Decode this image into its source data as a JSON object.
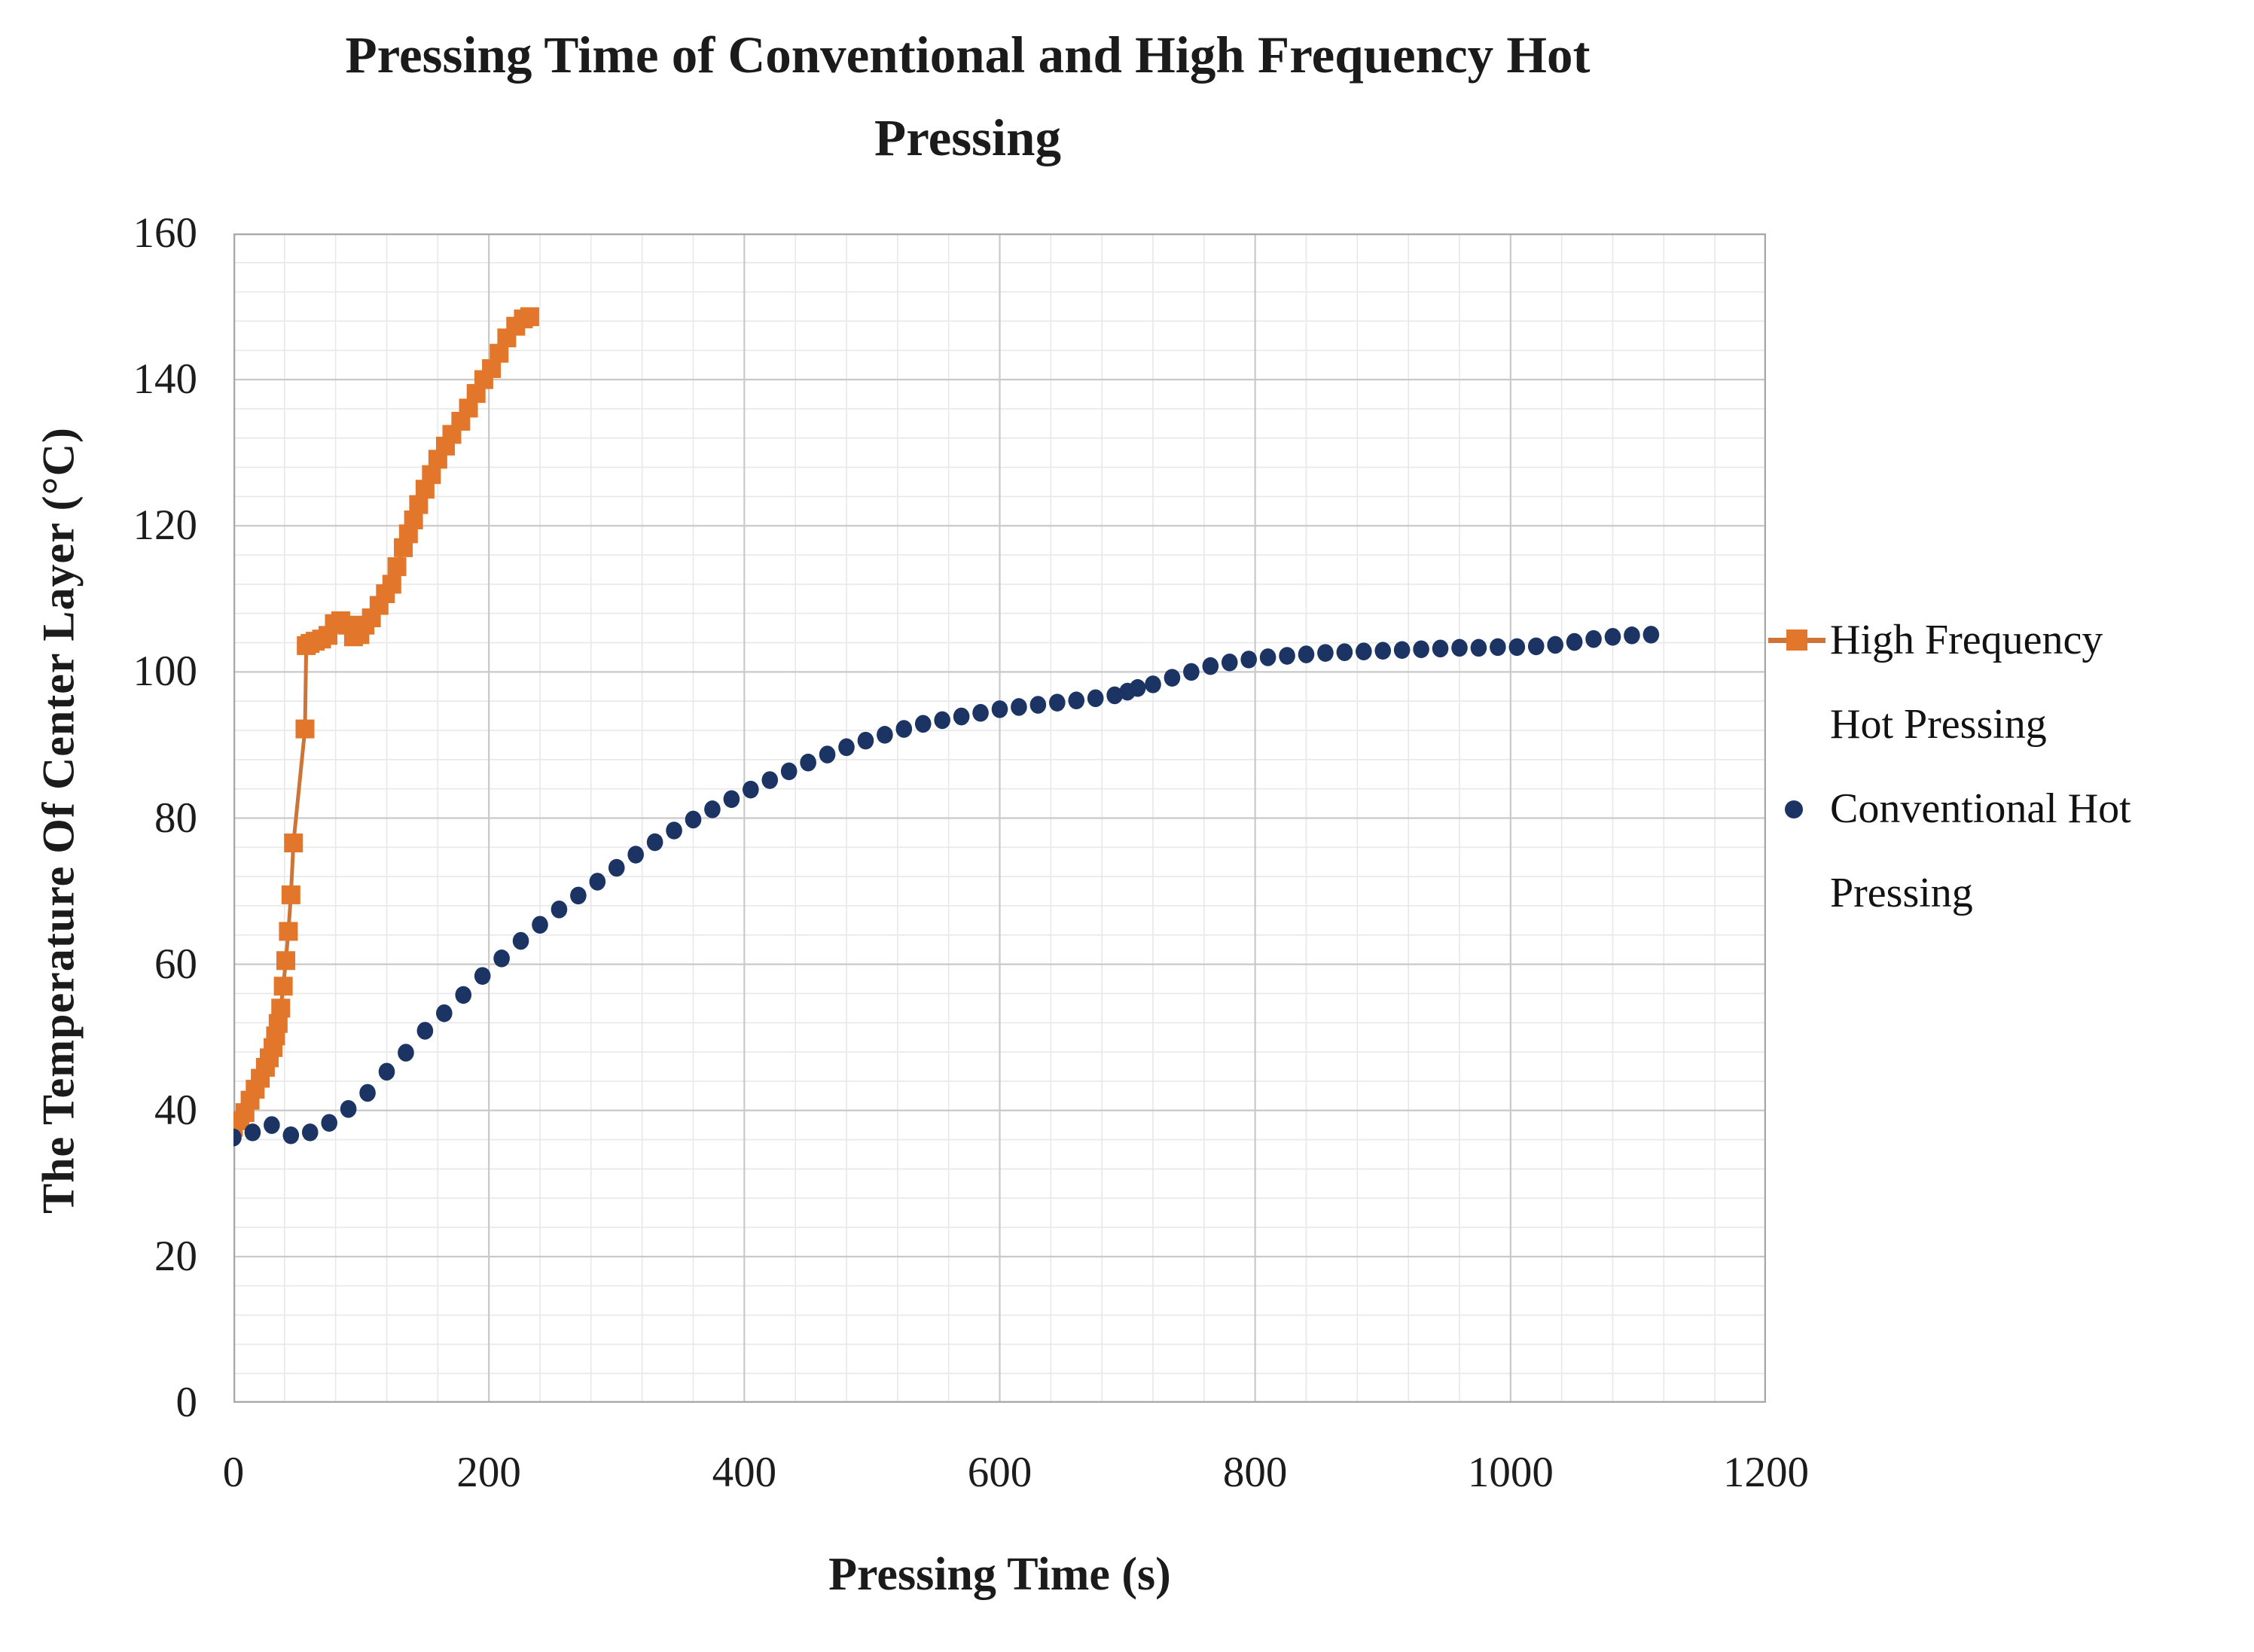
{
  "chart_data": {
    "type": "scatter",
    "title": "Pressing Time of Conventional and High Frequency Hot Pressing",
    "title_lines": [
      "Pressing Time of Conventional and High Frequency Hot",
      "Pressing"
    ],
    "xlabel": "Pressing Time (s)",
    "ylabel": "The Temperature Of Center Layer (°C)",
    "xlim": [
      0,
      1200
    ],
    "ylim": [
      0,
      160
    ],
    "x_ticks": [
      0,
      200,
      400,
      600,
      800,
      1000,
      1200
    ],
    "y_ticks": [
      0,
      20,
      40,
      60,
      80,
      100,
      120,
      140,
      160
    ],
    "x_minor_unit": 40,
    "y_minor_unit": 4,
    "grid": "major and minor gridlines on",
    "legend_position": "right",
    "colors": {
      "minor_grid": "#e8e8e8",
      "major_grid": "#c9c9c9",
      "plot_border": "#a8a8a8",
      "text": "#1b1b1b"
    },
    "series": [
      {
        "name": "High Frequency Hot Pressing",
        "legend_label": "High Frequency\nHot Pressing",
        "marker": "square",
        "draw": "line+markers",
        "color": "#e2762b",
        "line_color": "#cd7436",
        "points": [
          [
            0,
            37.7
          ],
          [
            5,
            38.6
          ],
          [
            9,
            39.7
          ],
          [
            13,
            41.4
          ],
          [
            17,
            42.9
          ],
          [
            21,
            44.4
          ],
          [
            25,
            45.9
          ],
          [
            28,
            47.2
          ],
          [
            31,
            48.6
          ],
          [
            33,
            50.2
          ],
          [
            35,
            51.9
          ],
          [
            37,
            54.0
          ],
          [
            39,
            57.0
          ],
          [
            41,
            60.5
          ],
          [
            43,
            64.5
          ],
          [
            45,
            69.5
          ],
          [
            47,
            76.6
          ],
          [
            56,
            92.2
          ],
          [
            57,
            103.6
          ],
          [
            60,
            103.9
          ],
          [
            64,
            104.2
          ],
          [
            69,
            104.5
          ],
          [
            74,
            105.0
          ],
          [
            79,
            106.6
          ],
          [
            84,
            107.0
          ],
          [
            89,
            106.4
          ],
          [
            94,
            104.8
          ],
          [
            99,
            105.1
          ],
          [
            103,
            106.4
          ],
          [
            108,
            107.4
          ],
          [
            114,
            109.1
          ],
          [
            119,
            110.7
          ],
          [
            124,
            112.0
          ],
          [
            128,
            114.4
          ],
          [
            133,
            117.0
          ],
          [
            137,
            118.9
          ],
          [
            141,
            120.8
          ],
          [
            145,
            122.9
          ],
          [
            150,
            125.0
          ],
          [
            155,
            127.0
          ],
          [
            160,
            129.1
          ],
          [
            166,
            130.9
          ],
          [
            171,
            132.5
          ],
          [
            178,
            134.3
          ],
          [
            184,
            136.1
          ],
          [
            190,
            138.1
          ],
          [
            196,
            140.0
          ],
          [
            202,
            141.5
          ],
          [
            208,
            143.6
          ],
          [
            214,
            145.7
          ],
          [
            221,
            147.3
          ],
          [
            227,
            148.3
          ],
          [
            232,
            148.6
          ]
        ]
      },
      {
        "name": "Conventional Hot Pressing",
        "legend_label": "Conventional Hot\nPressing",
        "marker": "circle",
        "draw": "markers",
        "color": "#1b3463",
        "points": [
          [
            0,
            36.3
          ],
          [
            15,
            37.0
          ],
          [
            30,
            38.0
          ],
          [
            45,
            36.6
          ],
          [
            60,
            37.0
          ],
          [
            75,
            38.3
          ],
          [
            90,
            40.2
          ],
          [
            105,
            42.4
          ],
          [
            120,
            45.3
          ],
          [
            135,
            47.9
          ],
          [
            150,
            50.9
          ],
          [
            165,
            53.3
          ],
          [
            180,
            55.8
          ],
          [
            195,
            58.4
          ],
          [
            210,
            60.8
          ],
          [
            225,
            63.2
          ],
          [
            240,
            65.4
          ],
          [
            255,
            67.5
          ],
          [
            270,
            69.4
          ],
          [
            285,
            71.3
          ],
          [
            300,
            73.2
          ],
          [
            315,
            75.0
          ],
          [
            330,
            76.7
          ],
          [
            345,
            78.3
          ],
          [
            360,
            79.8
          ],
          [
            375,
            81.2
          ],
          [
            390,
            82.6
          ],
          [
            405,
            83.9
          ],
          [
            420,
            85.2
          ],
          [
            435,
            86.4
          ],
          [
            450,
            87.6
          ],
          [
            465,
            88.7
          ],
          [
            480,
            89.7
          ],
          [
            495,
            90.6
          ],
          [
            510,
            91.4
          ],
          [
            525,
            92.2
          ],
          [
            540,
            92.9
          ],
          [
            555,
            93.4
          ],
          [
            570,
            93.9
          ],
          [
            585,
            94.4
          ],
          [
            600,
            94.9
          ],
          [
            615,
            95.2
          ],
          [
            630,
            95.5
          ],
          [
            645,
            95.8
          ],
          [
            660,
            96.1
          ],
          [
            675,
            96.4
          ],
          [
            690,
            96.8
          ],
          [
            700,
            97.3
          ],
          [
            708,
            97.8
          ],
          [
            720,
            98.3
          ],
          [
            735,
            99.2
          ],
          [
            750,
            100.0
          ],
          [
            765,
            100.8
          ],
          [
            780,
            101.3
          ],
          [
            795,
            101.7
          ],
          [
            810,
            102.0
          ],
          [
            825,
            102.2
          ],
          [
            840,
            102.4
          ],
          [
            855,
            102.6
          ],
          [
            870,
            102.7
          ],
          [
            885,
            102.8
          ],
          [
            900,
            102.9
          ],
          [
            915,
            103.0
          ],
          [
            930,
            103.1
          ],
          [
            945,
            103.2
          ],
          [
            960,
            103.3
          ],
          [
            975,
            103.3
          ],
          [
            990,
            103.4
          ],
          [
            1005,
            103.4
          ],
          [
            1020,
            103.5
          ],
          [
            1035,
            103.7
          ],
          [
            1050,
            104.1
          ],
          [
            1065,
            104.5
          ],
          [
            1080,
            104.8
          ],
          [
            1095,
            105.0
          ],
          [
            1110,
            105.1
          ]
        ]
      }
    ]
  }
}
